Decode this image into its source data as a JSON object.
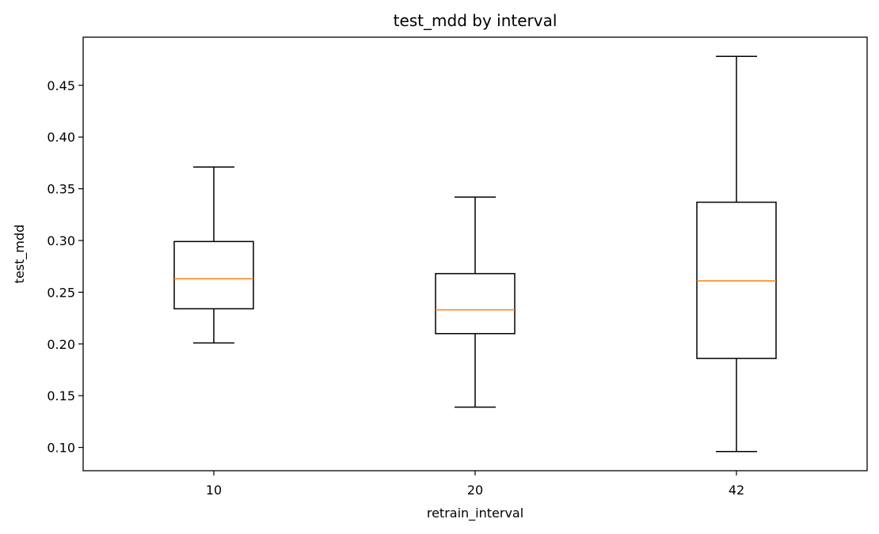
{
  "chart_data": {
    "type": "box",
    "title": "test_mdd by interval",
    "xlabel": "retrain_interval",
    "ylabel": "test_mdd",
    "categories": [
      "10",
      "20",
      "42"
    ],
    "boxes": [
      {
        "category": "10",
        "whisker_low": 0.201,
        "q1": 0.234,
        "median": 0.263,
        "q3": 0.299,
        "whisker_high": 0.371
      },
      {
        "category": "20",
        "whisker_low": 0.139,
        "q1": 0.21,
        "median": 0.233,
        "q3": 0.268,
        "whisker_high": 0.342
      },
      {
        "category": "42",
        "whisker_low": 0.096,
        "q1": 0.186,
        "median": 0.261,
        "q3": 0.337,
        "whisker_high": 0.478
      }
    ],
    "yticks": [
      "0.10",
      "0.15",
      "0.20",
      "0.25",
      "0.30",
      "0.35",
      "0.40",
      "0.45"
    ],
    "ylim": [
      0.0775,
      0.4965
    ],
    "grid": false,
    "colors": {
      "box": "#000000",
      "median": "#ff7f0e"
    }
  }
}
